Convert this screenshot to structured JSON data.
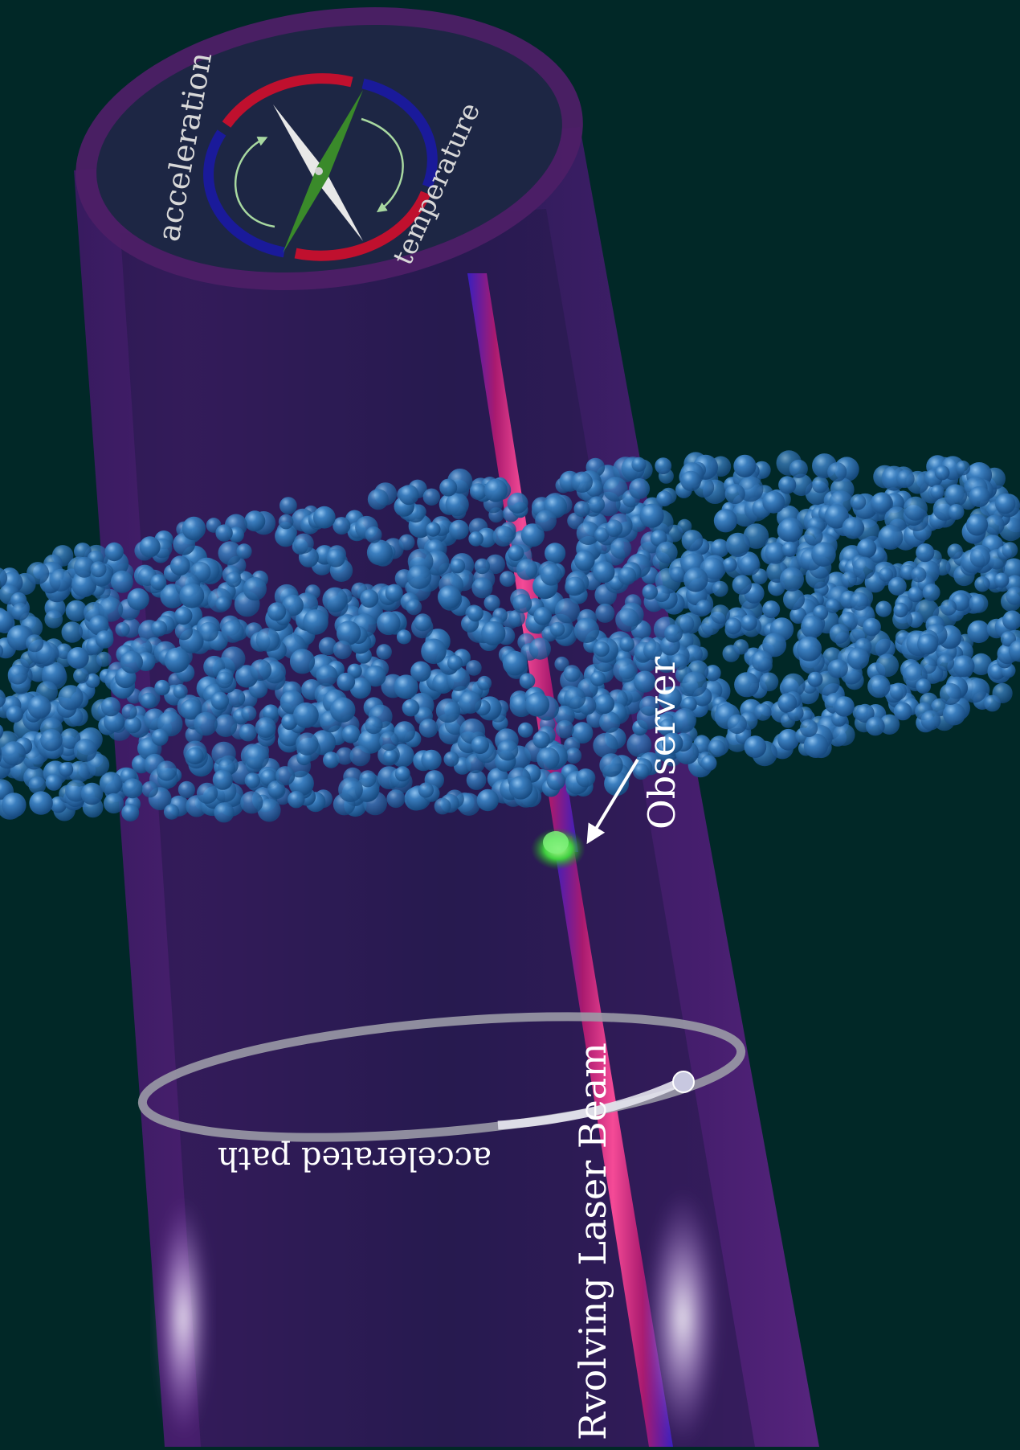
{
  "labels": {
    "acceleration": "acceleration",
    "temperature": "temperature",
    "observer": "Observer",
    "accelerated_path": "accelerated path",
    "laser_beam": "Rvolving Laser Beam"
  },
  "colors": {
    "background": "#012827",
    "cylinder": "#5a2480",
    "cylinder_rim": "#4d1f66",
    "cap_face": "#1d2644",
    "beam": "#d6246b",
    "beam_edge": "#3a1fc4",
    "atoms": "#2b6aa6",
    "observer": "#40d040",
    "dial_red": "#c0102e",
    "dial_blue": "#1a1a9a",
    "needle_white": "#e8e8e8",
    "needle_green": "#3a8a2a",
    "arrow_green": "#a8d8a0",
    "ring": "#c8c8d0",
    "label": "#ffffff"
  }
}
